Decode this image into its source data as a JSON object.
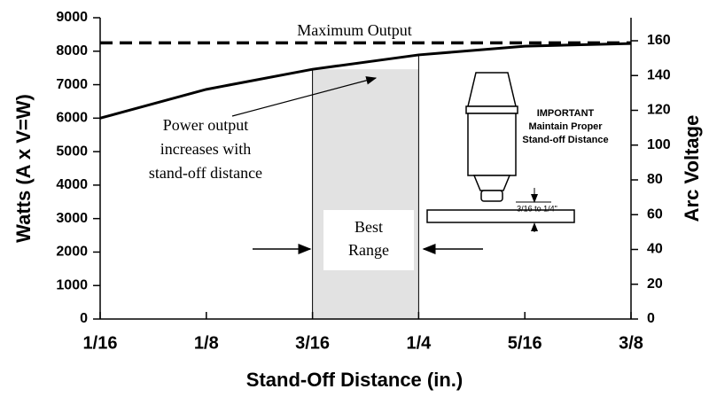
{
  "chart_data": {
    "type": "line",
    "x": [
      0.0625,
      0.125,
      0.1875,
      0.25,
      0.3125,
      0.375
    ],
    "values": [
      6000,
      6860,
      7460,
      7890,
      8150,
      8230
    ],
    "color": "#000000",
    "xlim": [
      0.0625,
      0.375
    ],
    "xticks": [
      {
        "value": 0.0625,
        "label": "1/16"
      },
      {
        "value": 0.125,
        "label": "1/8"
      },
      {
        "value": 0.1875,
        "label": "3/16"
      },
      {
        "value": 0.25,
        "label": "1/4"
      },
      {
        "value": 0.3125,
        "label": "5/16"
      },
      {
        "value": 0.375,
        "label": "3/8"
      }
    ],
    "ylim": [
      0,
      9000
    ],
    "yticks": [
      0,
      1000,
      2000,
      3000,
      4000,
      5000,
      6000,
      7000,
      8000,
      9000
    ],
    "y2lim": [
      0,
      160
    ],
    "y2ticks": [
      0,
      20,
      40,
      60,
      80,
      100,
      120,
      140,
      160
    ],
    "xlabel": "Stand-Off Distance (in.)",
    "ylabel": "Watts (A x V=W)",
    "y2label": "Arc Voltage",
    "reference_line": {
      "label": "Maximum Output",
      "value": 8250
    },
    "shaded_range": [
      0.1875,
      0.25
    ],
    "annotations": {
      "power_output": [
        "Power output",
        "increases with",
        "stand-off distance"
      ],
      "best_range": [
        "Best",
        "Range"
      ],
      "important": [
        "IMPORTANT",
        "Maintain Proper",
        "Stand-off Distance"
      ],
      "gap": "3/16 to 1/4\""
    }
  }
}
